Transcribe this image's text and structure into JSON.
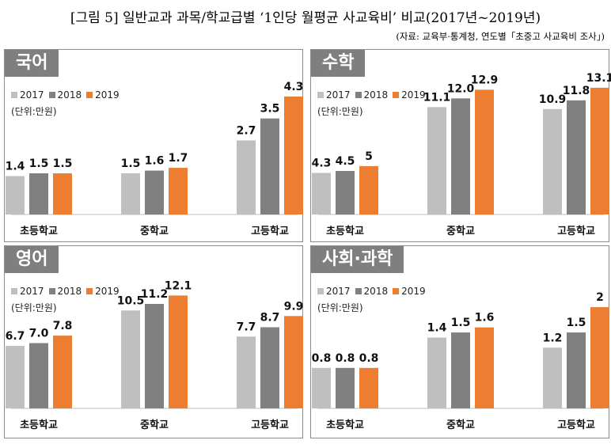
{
  "title": "[그림 5] 일반교과 과목/학교급별 ‘1인당 월평균 사교육비’ 비교(2017년~2019년)",
  "source": "(자료: 교육부·통계청, 연도별「초중고 사교육비 조사」)",
  "colors": {
    "2017": "#bfbfbf",
    "2018": "#808080",
    "2019": "#ed7d31"
  },
  "chart_data": [
    {
      "type": "bar",
      "title": "국어",
      "unit": "(단위:만원)",
      "categories": [
        "초등학교",
        "중학교",
        "고등학교"
      ],
      "series": [
        {
          "name": "2017",
          "values": [
            1.4,
            1.5,
            2.7
          ]
        },
        {
          "name": "2018",
          "values": [
            1.5,
            1.6,
            3.5
          ]
        },
        {
          "name": "2019",
          "values": [
            1.5,
            1.7,
            4.3
          ]
        }
      ],
      "ylim": [
        0,
        4.76
      ]
    },
    {
      "type": "bar",
      "title": "수학",
      "unit": "(단위:만원)",
      "categories": [
        "초등학교",
        "중학교",
        "고등학교"
      ],
      "series": [
        {
          "name": "2017",
          "values": [
            4.3,
            11.1,
            10.9
          ]
        },
        {
          "name": "2018",
          "values": [
            4.5,
            12.0,
            11.8
          ]
        },
        {
          "name": "2019",
          "values": [
            5,
            12.9,
            13.1
          ]
        }
      ],
      "ylim": [
        0,
        13.5
      ]
    },
    {
      "type": "bar",
      "title": "영어",
      "unit": "(단위:만원)",
      "categories": [
        "초등학교",
        "중학교",
        "고등학교"
      ],
      "series": [
        {
          "name": "2017",
          "values": [
            6.7,
            10.5,
            7.7
          ]
        },
        {
          "name": "2018",
          "values": [
            7.0,
            11.2,
            8.7
          ]
        },
        {
          "name": "2019",
          "values": [
            7.8,
            12.1,
            9.9
          ]
        }
      ],
      "ylim": [
        0,
        14
      ]
    },
    {
      "type": "bar",
      "title": "사회·과학",
      "unit": "(단위:만원)",
      "categories": [
        "초등학교",
        "중학교",
        "고등학교"
      ],
      "series": [
        {
          "name": "2017",
          "values": [
            0.8,
            1.4,
            1.2
          ]
        },
        {
          "name": "2018",
          "values": [
            0.8,
            1.5,
            1.5
          ]
        },
        {
          "name": "2019",
          "values": [
            0.8,
            1.6,
            2
          ]
        }
      ],
      "ylim": [
        0,
        2.58
      ]
    }
  ],
  "value_labels": [
    [
      [
        "1.4",
        "1.5",
        "2.7"
      ],
      [
        "1.5",
        "1.6",
        "3.5"
      ],
      [
        "1.5",
        "1.7",
        "4.3"
      ]
    ],
    [
      [
        "4.3",
        "11.1",
        "10.9"
      ],
      [
        "4.5",
        "12.0",
        "11.8"
      ],
      [
        "5",
        "12.9",
        "13.1"
      ]
    ],
    [
      [
        "6.7",
        "10.5",
        "7.7"
      ],
      [
        "7.0",
        "11.2",
        "8.7"
      ],
      [
        "7.8",
        "12.1",
        "9.9"
      ]
    ],
    [
      [
        "0.8",
        "1.4",
        "1.2"
      ],
      [
        "0.8",
        "1.5",
        "1.5"
      ],
      [
        "0.8",
        "1.6",
        "2"
      ]
    ]
  ]
}
